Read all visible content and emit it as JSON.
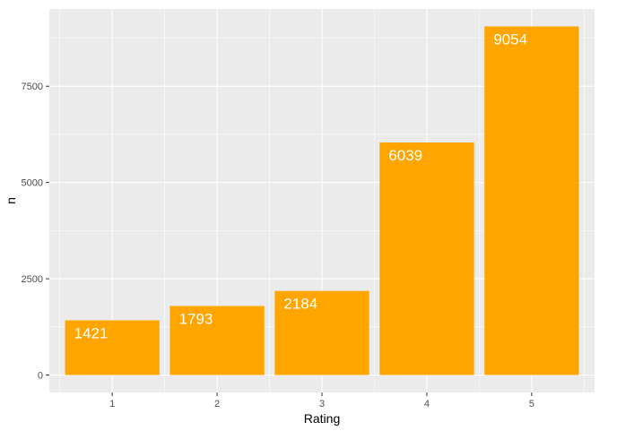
{
  "chart_data": {
    "type": "bar",
    "categories": [
      "1",
      "2",
      "3",
      "4",
      "5"
    ],
    "values": [
      1421,
      1793,
      2184,
      6039,
      9054
    ],
    "data_labels": [
      "1421",
      "1793",
      "2184",
      "6039",
      "9054"
    ],
    "xlabel": "Rating",
    "ylabel": "n",
    "ylim": [
      -453,
      9507
    ],
    "yticks": [
      0,
      2500,
      5000,
      7500
    ],
    "ytick_labels": [
      "0",
      "2500",
      "5000",
      "7500"
    ],
    "grid": true,
    "bar_color": "#ffa500",
    "panel_background": "#ebebeb",
    "grid_color": "#ffffff",
    "label_color": "#ffffff"
  }
}
